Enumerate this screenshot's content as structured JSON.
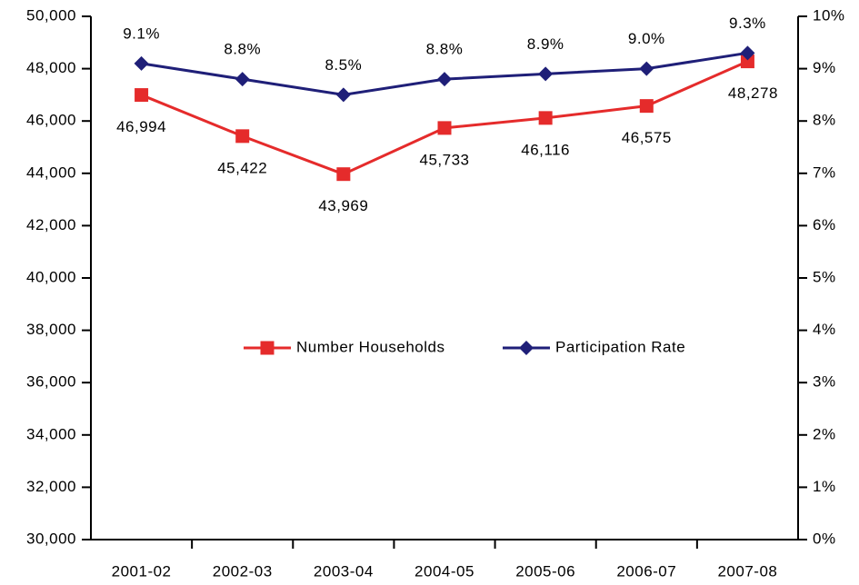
{
  "chart_data": {
    "type": "line",
    "categories": [
      "2001-02",
      "2002-03",
      "2003-04",
      "2004-05",
      "2005-06",
      "2006-07",
      "2007-08"
    ],
    "series": [
      {
        "name": "Number Households",
        "color": "#e52b2b",
        "axis": "y",
        "values": [
          46994,
          45422,
          43969,
          45733,
          46116,
          46575,
          48278
        ],
        "value_labels": [
          "46,994",
          "45,422",
          "43,969",
          "45,733",
          "46,116",
          "46,575",
          "48,278"
        ]
      },
      {
        "name": "Participation Rate",
        "color": "#1f1f78",
        "axis": "y2",
        "values": [
          9.1,
          8.8,
          8.5,
          8.8,
          8.9,
          9.0,
          9.3
        ],
        "value_labels": [
          "9.1%",
          "8.8%",
          "8.5%",
          "8.8%",
          "8.9%",
          "9.0%",
          "9.3%"
        ]
      }
    ],
    "ylim": [
      30000,
      50000
    ],
    "yticks": [
      {
        "value": 30000,
        "label": "30,000"
      },
      {
        "value": 32000,
        "label": "32,000"
      },
      {
        "value": 34000,
        "label": "34,000"
      },
      {
        "value": 36000,
        "label": "36,000"
      },
      {
        "value": 38000,
        "label": "38,000"
      },
      {
        "value": 40000,
        "label": "40,000"
      },
      {
        "value": 42000,
        "label": "42,000"
      },
      {
        "value": 44000,
        "label": "44,000"
      },
      {
        "value": 46000,
        "label": "46,000"
      },
      {
        "value": 48000,
        "label": "48,000"
      },
      {
        "value": 50000,
        "label": "50,000"
      }
    ],
    "y2lim": [
      0,
      10
    ],
    "y2ticks": [
      {
        "value": 0,
        "label": "0%"
      },
      {
        "value": 1,
        "label": "1%"
      },
      {
        "value": 2,
        "label": "2%"
      },
      {
        "value": 3,
        "label": "3%"
      },
      {
        "value": 4,
        "label": "4%"
      },
      {
        "value": 5,
        "label": "5%"
      },
      {
        "value": 6,
        "label": "6%"
      },
      {
        "value": 7,
        "label": "7%"
      },
      {
        "value": 8,
        "label": "8%"
      },
      {
        "value": 9,
        "label": "9%"
      },
      {
        "value": 10,
        "label": "10%"
      }
    ],
    "legend": "center",
    "grid": false
  }
}
